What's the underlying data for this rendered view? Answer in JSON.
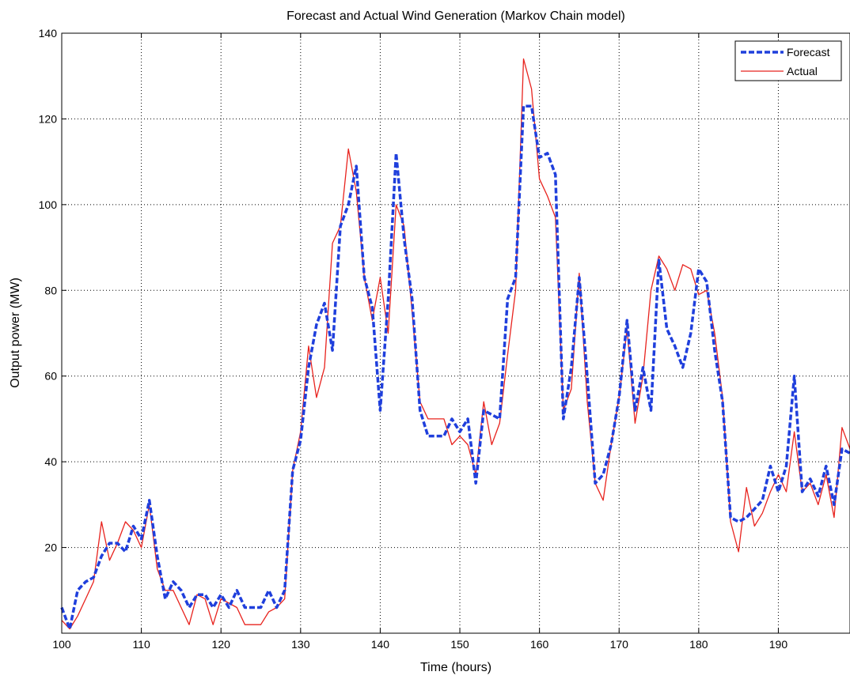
{
  "chart_data": {
    "type": "line",
    "title": "Forecast and Actual Wind Generation (Markov Chain model)",
    "xlabel": "Time (hours)",
    "ylabel": "Output power (MW)",
    "xlim": [
      100,
      199
    ],
    "ylim": [
      0,
      140
    ],
    "xticks": [
      100,
      110,
      120,
      130,
      140,
      150,
      160,
      170,
      180,
      190
    ],
    "yticks": [
      20,
      40,
      60,
      80,
      100,
      120,
      140
    ],
    "grid": true,
    "legend_position": "top-right",
    "x": [
      100,
      101,
      102,
      103,
      104,
      105,
      106,
      107,
      108,
      109,
      110,
      111,
      112,
      113,
      114,
      115,
      116,
      117,
      118,
      119,
      120,
      121,
      122,
      123,
      124,
      125,
      126,
      127,
      128,
      129,
      130,
      131,
      132,
      133,
      134,
      135,
      136,
      137,
      138,
      139,
      140,
      141,
      142,
      143,
      144,
      145,
      146,
      147,
      148,
      149,
      150,
      151,
      152,
      153,
      154,
      155,
      156,
      157,
      158,
      159,
      160,
      161,
      162,
      163,
      164,
      165,
      166,
      167,
      168,
      169,
      170,
      171,
      172,
      173,
      174,
      175,
      176,
      177,
      178,
      179,
      180,
      181,
      182,
      183,
      184,
      185,
      186,
      187,
      188,
      189,
      190,
      191,
      192,
      193,
      194,
      195,
      196,
      197,
      198,
      199
    ],
    "series": [
      {
        "name": "Forecast",
        "color": "#1f3fdc",
        "style": "dashed",
        "values": [
          6,
          1,
          10,
          12,
          13,
          18,
          21,
          21,
          19,
          25,
          22,
          31,
          18,
          8,
          12,
          10,
          6,
          9,
          9,
          6,
          9,
          6,
          10,
          6,
          6,
          6,
          10,
          6,
          10,
          38,
          45,
          62,
          72,
          77,
          66,
          95,
          100,
          109,
          83,
          76,
          52,
          78,
          112,
          92,
          78,
          52,
          46,
          46,
          46,
          50,
          47,
          50,
          35,
          52,
          51,
          50,
          78,
          83,
          123,
          123,
          111,
          112,
          107,
          50,
          62,
          83,
          60,
          35,
          37,
          44,
          55,
          73,
          52,
          62,
          52,
          87,
          71,
          67,
          62,
          70,
          85,
          82,
          66,
          54,
          27,
          26,
          27,
          29,
          31,
          39,
          33,
          39,
          60,
          33,
          36,
          32,
          39,
          30,
          43,
          42
        ]
      },
      {
        "name": "Actual",
        "color": "#e8231e",
        "style": "solid",
        "values": [
          3,
          1,
          4,
          8,
          12,
          26,
          17,
          21,
          26,
          24,
          20,
          30,
          15,
          10,
          10,
          6,
          2,
          9,
          8,
          2,
          8,
          7,
          6,
          2,
          2,
          2,
          5,
          6,
          8,
          38,
          47,
          67,
          55,
          62,
          91,
          95,
          113,
          103,
          83,
          73,
          83,
          70,
          100,
          95,
          75,
          54,
          50,
          50,
          50,
          44,
          46,
          44,
          37,
          54,
          44,
          49,
          65,
          80,
          134,
          127,
          106,
          102,
          97,
          52,
          57,
          84,
          54,
          35,
          31,
          44,
          55,
          71,
          49,
          60,
          80,
          88,
          85,
          80,
          86,
          85,
          79,
          80,
          70,
          55,
          26,
          19,
          34,
          25,
          28,
          33,
          37,
          33,
          47,
          33,
          35,
          30,
          37,
          27,
          48,
          43
        ]
      }
    ]
  }
}
